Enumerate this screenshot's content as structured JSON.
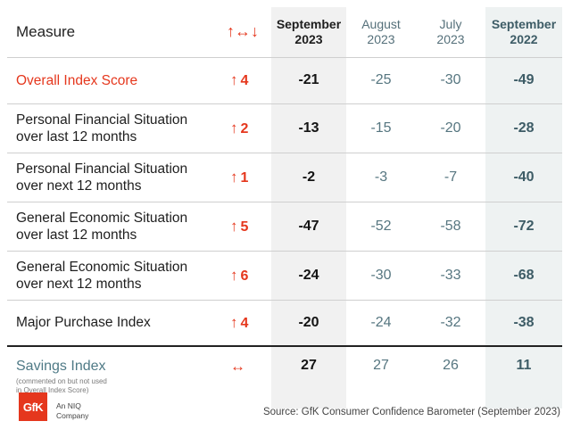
{
  "header": {
    "measure_label": "Measure",
    "change_symbol": "↑↔↓",
    "columns": [
      {
        "line1": "September",
        "line2": "2023"
      },
      {
        "line1": "August",
        "line2": "2023"
      },
      {
        "line1": "July",
        "line2": "2023"
      },
      {
        "line1": "September",
        "line2": "2022"
      }
    ]
  },
  "rows": [
    {
      "label": "Overall Index Score",
      "change_arrow": "↑",
      "change_value": "4",
      "sep23": "-21",
      "aug23": "-25",
      "jul23": "-30",
      "sep22": "-49"
    },
    {
      "label_line1": "Personal Financial Situation",
      "label_line2": "over last 12 months",
      "change_arrow": "↑",
      "change_value": "2",
      "sep23": "-13",
      "aug23": "-15",
      "jul23": "-20",
      "sep22": "-28"
    },
    {
      "label_line1": "Personal Financial Situation",
      "label_line2": "over next 12 months",
      "change_arrow": "↑",
      "change_value": "1",
      "sep23": "-2",
      "aug23": "-3",
      "jul23": "-7",
      "sep22": "-40"
    },
    {
      "label_line1": "General Economic Situation",
      "label_line2": "over last 12 months",
      "change_arrow": "↑",
      "change_value": "5",
      "sep23": "-47",
      "aug23": "-52",
      "jul23": "-58",
      "sep22": "-72"
    },
    {
      "label_line1": "General Economic Situation",
      "label_line2": "over next 12 months",
      "change_arrow": "↑",
      "change_value": "6",
      "sep23": "-24",
      "aug23": "-30",
      "jul23": "-33",
      "sep22": "-68"
    },
    {
      "label": "Major Purchase Index",
      "change_arrow": "↑",
      "change_value": "4",
      "sep23": "-20",
      "aug23": "-24",
      "jul23": "-32",
      "sep22": "-38"
    }
  ],
  "savings": {
    "label": "Savings Index",
    "note_line1": "(commented on but not used",
    "note_line2": "in Overall Index Score)",
    "change_arrow": "↔",
    "sep23": "27",
    "aug23": "27",
    "jul23": "26",
    "sep22": "11"
  },
  "footer": {
    "logo_text": "GfK",
    "tagline_line1": "An NIQ",
    "tagline_line2": "Company",
    "source": "Source: GfK Consumer Confidence Barometer (September 2023)"
  },
  "colors": {
    "accent_red": "#e5371d",
    "teal": "#3d5c66",
    "muted_teal": "#567680"
  }
}
